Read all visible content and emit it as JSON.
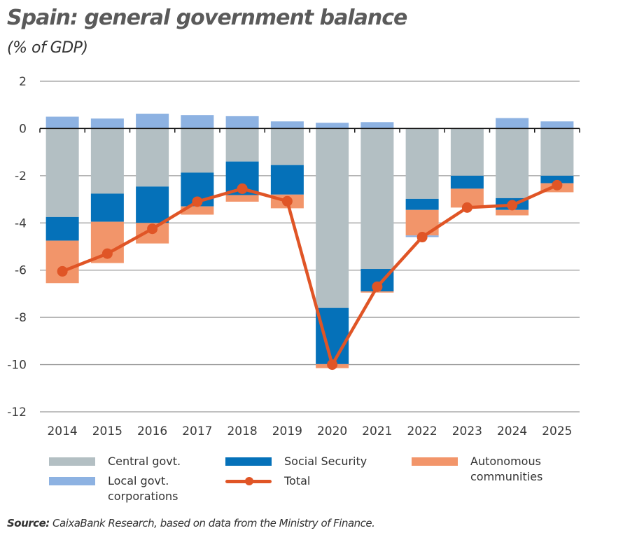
{
  "chart_data": {
    "type": "bar",
    "stacked": true,
    "title": "Spain: general government balance",
    "subtitle": "(% of GDP)",
    "xlabel": "",
    "ylabel": "",
    "ylim": [
      -12,
      2
    ],
    "yticks": [
      2,
      0,
      -2,
      -4,
      -6,
      -8,
      -10,
      -12
    ],
    "grid": true,
    "categories": [
      "2014",
      "2015",
      "2016",
      "2017",
      "2018",
      "2019",
      "2020",
      "2021",
      "2022",
      "2023",
      "2024",
      "2025"
    ],
    "series": [
      {
        "name": "Central govt.",
        "type": "bar",
        "color": "#b3bfc3",
        "values": [
          -3.75,
          -2.76,
          -2.46,
          -1.87,
          -1.4,
          -1.55,
          -7.6,
          -5.95,
          -2.98,
          -2.0,
          -2.95,
          -2.0
        ]
      },
      {
        "name": "Social Security",
        "type": "bar",
        "color": "#0571b9",
        "values": [
          -1.0,
          -1.19,
          -1.54,
          -1.43,
          -1.42,
          -1.25,
          -2.38,
          -0.95,
          -0.47,
          -0.55,
          -0.5,
          -0.32
        ]
      },
      {
        "name": "Autonomous communities",
        "type": "bar",
        "color": "#f2956a",
        "values": [
          -1.8,
          -1.75,
          -0.87,
          -0.35,
          -0.28,
          -0.58,
          -0.17,
          -0.05,
          -1.08,
          -0.8,
          -0.23,
          -0.38
        ]
      },
      {
        "name": "Local govt. corporations",
        "type": "bar",
        "color": "#8db2e2",
        "values": [
          0.5,
          0.42,
          0.62,
          0.57,
          0.52,
          0.3,
          0.24,
          0.27,
          -0.07,
          0.0,
          0.44,
          0.3
        ]
      },
      {
        "name": "Total",
        "type": "line",
        "color": "#e05526",
        "values": [
          -6.05,
          -5.3,
          -4.25,
          -3.1,
          -2.55,
          -3.08,
          -10.0,
          -6.7,
          -4.6,
          -3.35,
          -3.25,
          -2.4
        ]
      }
    ],
    "legend": {
      "placement": "bottom",
      "entries": [
        {
          "label": "Central govt.",
          "kind": "bar",
          "color": "#b3bfc3"
        },
        {
          "label": "Social Security",
          "kind": "bar",
          "color": "#0571b9"
        },
        {
          "label": "Autonomous communities",
          "kind": "bar",
          "color": "#f2956a"
        },
        {
          "label": "Local govt. corporations",
          "kind": "bar",
          "color": "#8db2e2"
        },
        {
          "label": "Total",
          "kind": "line",
          "color": "#e05526"
        }
      ]
    }
  },
  "source": {
    "label": "Source:",
    "text": "CaixaBank Research, based on data from the Ministry of Finance."
  }
}
